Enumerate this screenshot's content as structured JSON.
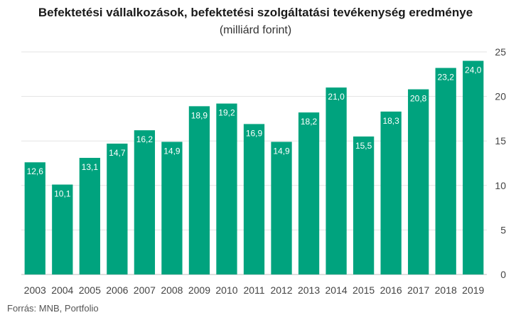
{
  "chart_data": {
    "type": "bar",
    "title": "Befektetési vállalkozások, befektetési szolgáltatási tevékenység eredménye",
    "subtitle": "(milliárd forint)",
    "categories": [
      "2003",
      "2004",
      "2005",
      "2006",
      "2007",
      "2008",
      "2009",
      "2010",
      "2011",
      "2012",
      "2013",
      "2014",
      "2015",
      "2016",
      "2017",
      "2018",
      "2019"
    ],
    "values": [
      12.6,
      10.1,
      13.1,
      14.7,
      16.2,
      14.9,
      18.9,
      19.2,
      16.9,
      14.9,
      18.2,
      21.0,
      15.5,
      18.3,
      20.8,
      23.2,
      24.0
    ],
    "data_labels": [
      "12,6",
      "10,1",
      "13,1",
      "14,7",
      "16,2",
      "14,9",
      "18,9",
      "19,2",
      "16,9",
      "14,9",
      "18,2",
      "21,0",
      "15,5",
      "18,3",
      "20,8",
      "23,2",
      "24,0"
    ],
    "yticks": [
      "0",
      "5",
      "10",
      "15",
      "20",
      "25"
    ],
    "ylim": [
      0,
      25
    ],
    "y_axis_side": "right",
    "grid": true,
    "bar_color": "#00a37e",
    "grid_color": "#e3e3e3",
    "source": "Forrás: MNB, Portfolio"
  }
}
